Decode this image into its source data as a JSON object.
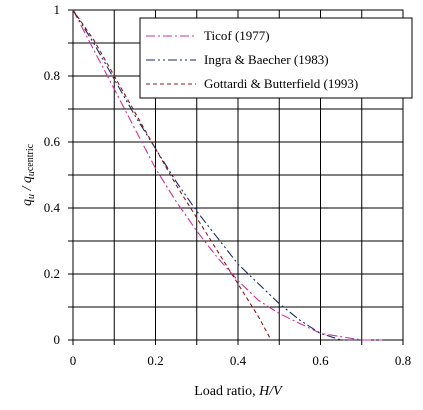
{
  "chart_data": {
    "type": "line",
    "title": "",
    "xlabel_prefix": "Load ratio, ",
    "xlabel_var": "H/V",
    "ylabel_main": "q",
    "ylabel_sub1": "u",
    "ylabel_mid": " / q",
    "ylabel_sub2": "u",
    "ylabel_sup": "centric",
    "xlim": [
      0,
      0.8
    ],
    "ylim": [
      0,
      1
    ],
    "xticks": [
      0,
      0.1,
      0.2,
      0.3,
      0.4,
      0.5,
      0.6,
      0.7,
      0.8
    ],
    "yticks": [
      0,
      0.1,
      0.2,
      0.3,
      0.4,
      0.5,
      0.6,
      0.7,
      0.8,
      0.9,
      1.0
    ],
    "xtick_labels": [
      "0",
      "",
      "0.2",
      "",
      "0.4",
      "",
      "0.6",
      "",
      "0.8"
    ],
    "ytick_labels": [
      "0",
      "",
      "0.2",
      "",
      "0.4",
      "",
      "0.6",
      "",
      "0.8",
      "",
      "1"
    ],
    "grid": true,
    "legend_position": "top-right",
    "series": [
      {
        "name": "Ticof (1977)",
        "color": "#cc3399",
        "dash": "9,3,2,3",
        "x": [
          0,
          0.05,
          0.1,
          0.15,
          0.2,
          0.25,
          0.3,
          0.35,
          0.4,
          0.45,
          0.5,
          0.55,
          0.6,
          0.65,
          0.7,
          0.75
        ],
        "y": [
          1.0,
          0.88,
          0.76,
          0.64,
          0.52,
          0.42,
          0.33,
          0.25,
          0.18,
          0.12,
          0.08,
          0.05,
          0.02,
          0.01,
          0.0,
          0.0
        ]
      },
      {
        "name": "Ingra & Baecher (1983)",
        "color": "#1a2a6c",
        "dash": "9,3,2,3,2,3",
        "x": [
          0,
          0.05,
          0.1,
          0.15,
          0.2,
          0.25,
          0.3,
          0.35,
          0.4,
          0.45,
          0.5,
          0.55,
          0.6,
          0.65,
          0.7
        ],
        "y": [
          1.0,
          0.9,
          0.79,
          0.68,
          0.58,
          0.48,
          0.39,
          0.31,
          0.23,
          0.17,
          0.11,
          0.06,
          0.02,
          0.0,
          0.0
        ]
      },
      {
        "name": "Gottardi & Butterfield (1993)",
        "color": "#8b1a1a",
        "dash": "4,3",
        "x": [
          0,
          0.05,
          0.1,
          0.15,
          0.2,
          0.25,
          0.3,
          0.35,
          0.4,
          0.45,
          0.48
        ],
        "y": [
          1.0,
          0.91,
          0.8,
          0.69,
          0.58,
          0.47,
          0.37,
          0.27,
          0.17,
          0.07,
          0.0
        ]
      }
    ]
  }
}
